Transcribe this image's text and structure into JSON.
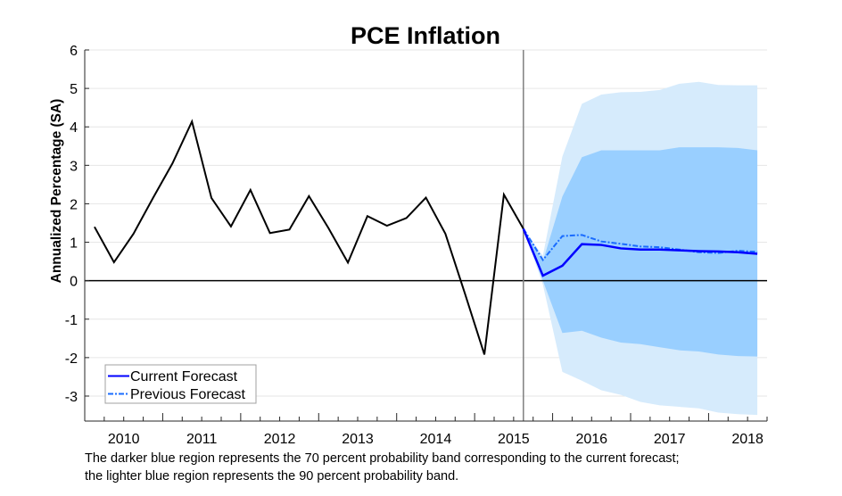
{
  "chart_data": {
    "type": "line",
    "title": "PCE Inflation",
    "xlabel": "",
    "ylabel": "Annualized Percentage (SA)",
    "xlim": [
      "2009Q3-start",
      "2018Q1-end"
    ],
    "ylim": [
      -3.65,
      6
    ],
    "yticks": [
      -3,
      -2,
      -1,
      0,
      1,
      2,
      3,
      4,
      5,
      6
    ],
    "xtick_labels": [
      "2010",
      "2011",
      "2012",
      "2013",
      "2014",
      "2015",
      "2016",
      "2017",
      "2018"
    ],
    "grid": true,
    "legend_position": "bottom-left",
    "forecast_start": "2015Q1",
    "colors": {
      "history": "#000000",
      "current": "#0000ff",
      "previous": "#1a6cff",
      "band70": "#99cfff",
      "band90": "#d6ebfc",
      "forecast_line": "#808080"
    },
    "history": {
      "x": [
        "2009Q3",
        "2009Q4",
        "2010Q1",
        "2010Q2",
        "2010Q3",
        "2010Q4",
        "2011Q1",
        "2011Q2",
        "2011Q3",
        "2011Q4",
        "2012Q1",
        "2012Q2",
        "2012Q3",
        "2012Q4",
        "2013Q1",
        "2013Q2",
        "2013Q3",
        "2013Q4",
        "2014Q1",
        "2014Q2",
        "2014Q3",
        "2014Q4",
        "2015Q1"
      ],
      "values": [
        1.4,
        0.48,
        1.22,
        2.15,
        3.05,
        4.14,
        2.15,
        1.41,
        2.36,
        1.24,
        1.33,
        2.2,
        1.37,
        0.47,
        1.68,
        1.43,
        1.63,
        2.16,
        1.22,
        -0.33,
        -1.92,
        2.24,
        1.35
      ]
    },
    "series": [
      {
        "name": "Current Forecast",
        "style": "solid",
        "x": [
          "2015Q1",
          "2015Q2",
          "2015Q3",
          "2015Q4",
          "2016Q1",
          "2016Q2",
          "2016Q3",
          "2016Q4",
          "2017Q1",
          "2017Q2",
          "2017Q3",
          "2017Q4",
          "2018Q1"
        ],
        "values": [
          1.35,
          0.13,
          0.39,
          0.95,
          0.93,
          0.84,
          0.81,
          0.81,
          0.79,
          0.77,
          0.76,
          0.74,
          0.7
        ]
      },
      {
        "name": "Previous Forecast",
        "style": "dash-dot",
        "x": [
          "2015Q1",
          "2015Q2",
          "2015Q3",
          "2015Q4",
          "2016Q1",
          "2016Q2",
          "2016Q3",
          "2016Q4",
          "2017Q1",
          "2017Q2",
          "2017Q3",
          "2017Q4",
          "2018Q1"
        ],
        "values": [
          1.35,
          0.54,
          1.16,
          1.19,
          1.02,
          0.96,
          0.89,
          0.87,
          0.81,
          0.74,
          0.72,
          0.78,
          0.75
        ]
      }
    ],
    "bands": {
      "x": [
        "2015Q1",
        "2015Q2",
        "2015Q3",
        "2015Q4",
        "2016Q1",
        "2016Q2",
        "2016Q3",
        "2016Q4",
        "2017Q1",
        "2017Q2",
        "2017Q3",
        "2017Q4",
        "2018Q1"
      ],
      "band90_upper": [
        1.35,
        0.65,
        3.23,
        4.6,
        4.84,
        4.9,
        4.91,
        4.96,
        5.12,
        5.17,
        5.09,
        5.08,
        5.08
      ],
      "band90_lower": [
        1.35,
        -0.1,
        -2.37,
        -2.6,
        -2.85,
        -2.97,
        -3.15,
        -3.24,
        -3.28,
        -3.32,
        -3.43,
        -3.47,
        -3.49
      ],
      "band70_upper": [
        1.35,
        0.5,
        2.19,
        3.21,
        3.39,
        3.39,
        3.39,
        3.39,
        3.47,
        3.47,
        3.47,
        3.45,
        3.39
      ],
      "band70_lower": [
        1.35,
        0.0,
        -1.36,
        -1.3,
        -1.48,
        -1.61,
        -1.65,
        -1.73,
        -1.81,
        -1.84,
        -1.92,
        -1.96,
        -1.97
      ]
    }
  },
  "caption": {
    "line1": "The darker blue region represents the 70 percent probability band corresponding to the current forecast;",
    "line2": "the lighter blue region represents the 90 percent probability band."
  }
}
